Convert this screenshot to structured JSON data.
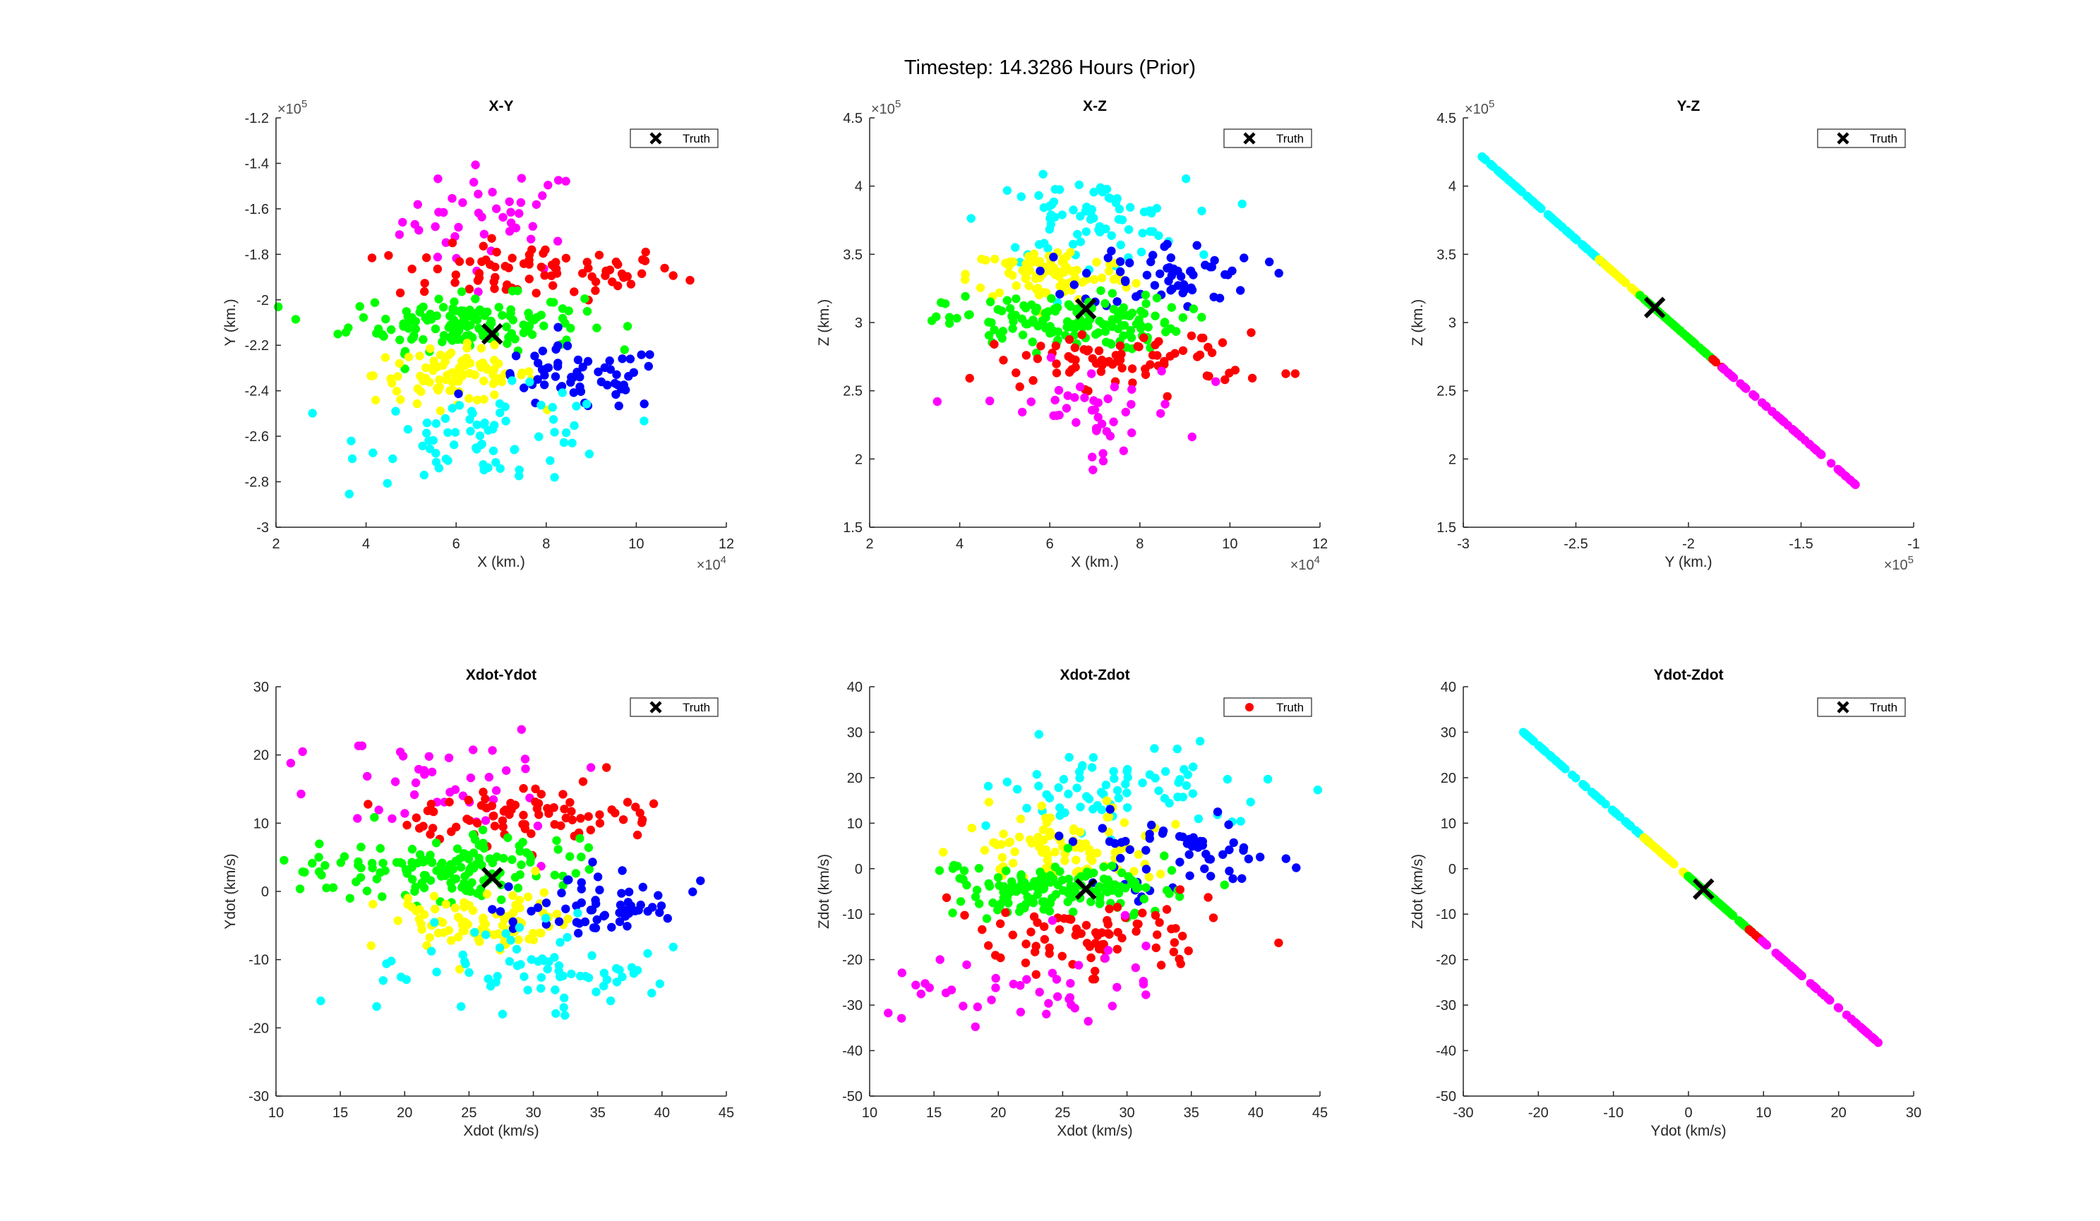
{
  "figure_title": "Timestep: 14.3286 Hours (Prior)",
  "colors": {
    "magenta": "#ff00ff",
    "red": "#ff0000",
    "green": "#00ff00",
    "yellow": "#ffff00",
    "blue": "#0000ff",
    "cyan": "#00ffff",
    "truth": "#000000"
  },
  "chart_data": [
    {
      "type": "scatter",
      "title": "X-Y",
      "xlabel": "X (km.)",
      "ylabel": "Y (km.)",
      "xlim": [
        2,
        12
      ],
      "ylim": [
        -3,
        -1.2
      ],
      "x_ticks": [
        "2",
        "4",
        "6",
        "8",
        "10",
        "12"
      ],
      "y_ticks": [
        "-3",
        "-2.8",
        "-2.6",
        "-2.4",
        "-2.2",
        "-2",
        "-1.8",
        "-1.6",
        "-1.4",
        "-1.2"
      ],
      "x_exponent": "×10^4",
      "y_exponent": "×10^5",
      "legend": {
        "label": "Truth",
        "marker": "x",
        "color": "#000000",
        "position": "top-right"
      },
      "truth": [
        6.8,
        -2.15
      ],
      "clusters": [
        {
          "name": "magenta",
          "cx": 6.8,
          "cy": -1.65,
          "sx": 1.0,
          "sy": 0.12,
          "n": 45
        },
        {
          "name": "red",
          "cx": 7.8,
          "cy": -1.88,
          "sx": 1.6,
          "sy": 0.06,
          "n": 80
        },
        {
          "name": "green",
          "cx": 6.2,
          "cy": -2.1,
          "sx": 1.3,
          "sy": 0.06,
          "n": 150
        },
        {
          "name": "yellow",
          "cx": 6.0,
          "cy": -2.33,
          "sx": 0.9,
          "sy": 0.06,
          "n": 90
        },
        {
          "name": "blue",
          "cx": 8.7,
          "cy": -2.35,
          "sx": 1.0,
          "sy": 0.07,
          "n": 60
        },
        {
          "name": "cyan",
          "cx": 6.8,
          "cy": -2.6,
          "sx": 1.4,
          "sy": 0.1,
          "n": 75
        }
      ]
    },
    {
      "type": "scatter",
      "title": "X-Z",
      "xlabel": "X (km.)",
      "ylabel": "Z (km.)",
      "xlim": [
        2,
        12
      ],
      "ylim": [
        1.5,
        4.5
      ],
      "x_ticks": [
        "2",
        "4",
        "6",
        "8",
        "10",
        "12"
      ],
      "y_ticks": [
        "1.5",
        "2",
        "2.5",
        "3",
        "3.5",
        "4",
        "4.5"
      ],
      "x_exponent": "×10^4",
      "y_exponent": "×10^5",
      "legend": {
        "label": "Truth",
        "marker": "x",
        "color": "#000000",
        "position": "top-right"
      },
      "truth": [
        6.8,
        3.1
      ],
      "clusters": [
        {
          "name": "cyan",
          "cx": 6.8,
          "cy": 3.75,
          "sx": 1.1,
          "sy": 0.15,
          "n": 75
        },
        {
          "name": "yellow",
          "cx": 6.0,
          "cy": 3.35,
          "sx": 0.9,
          "sy": 0.1,
          "n": 90
        },
        {
          "name": "blue",
          "cx": 8.7,
          "cy": 3.35,
          "sx": 1.0,
          "sy": 0.12,
          "n": 60
        },
        {
          "name": "green",
          "cx": 6.3,
          "cy": 3.0,
          "sx": 1.3,
          "sy": 0.1,
          "n": 150
        },
        {
          "name": "red",
          "cx": 7.8,
          "cy": 2.72,
          "sx": 1.6,
          "sy": 0.1,
          "n": 80
        },
        {
          "name": "magenta",
          "cx": 6.8,
          "cy": 2.35,
          "sx": 1.1,
          "sy": 0.18,
          "n": 45
        }
      ]
    },
    {
      "type": "scatter",
      "title": "Y-Z",
      "xlabel": "Y (km.)",
      "ylabel": "Z (km.)",
      "xlim": [
        -3,
        -1
      ],
      "ylim": [
        1.5,
        4.5
      ],
      "x_ticks": [
        "-3",
        "-2.5",
        "-2",
        "-1.5",
        "-1"
      ],
      "y_ticks": [
        "1.5",
        "2",
        "2.5",
        "3",
        "3.5",
        "4",
        "4.5"
      ],
      "x_exponent": "×10^5",
      "y_exponent": "×10^5",
      "legend": {
        "label": "Truth",
        "marker": "x",
        "color": "#000000",
        "position": "top-right"
      },
      "truth": [
        -2.15,
        3.11
      ],
      "line": {
        "x1": -2.92,
        "y1": 4.22,
        "x2": -1.25,
        "y2": 1.8
      },
      "segments": [
        {
          "name": "cyan",
          "t0": 0.0,
          "t1": 0.33,
          "n": 70
        },
        {
          "name": "yellow",
          "t0": 0.31,
          "t1": 0.44,
          "n": 40
        },
        {
          "name": "green",
          "t0": 0.42,
          "t1": 0.62,
          "n": 80
        },
        {
          "name": "red",
          "t0": 0.61,
          "t1": 0.65,
          "n": 10
        },
        {
          "name": "magenta",
          "t0": 0.64,
          "t1": 1.0,
          "n": 55
        }
      ]
    },
    {
      "type": "scatter",
      "title": "Xdot-Ydot",
      "xlabel": "Xdot (km/s)",
      "ylabel": "Ydot (km/s)",
      "xlim": [
        10,
        45
      ],
      "ylim": [
        -30,
        30
      ],
      "x_ticks": [
        "10",
        "15",
        "20",
        "25",
        "30",
        "35",
        "40",
        "45"
      ],
      "y_ticks": [
        "-30",
        "-20",
        "-10",
        "0",
        "10",
        "20",
        "30"
      ],
      "legend": {
        "label": "Truth",
        "marker": "x",
        "color": "#000000",
        "position": "top-right"
      },
      "truth": [
        26.8,
        2.0
      ],
      "clusters": [
        {
          "name": "magenta",
          "cx": 22.0,
          "cy": 17.0,
          "sx": 5.0,
          "sy": 4.0,
          "n": 45
        },
        {
          "name": "red",
          "cx": 29.0,
          "cy": 11.0,
          "sx": 5.5,
          "sy": 2.2,
          "n": 80
        },
        {
          "name": "green",
          "cx": 24.0,
          "cy": 3.5,
          "sx": 5.0,
          "sy": 2.2,
          "n": 150
        },
        {
          "name": "yellow",
          "cx": 25.5,
          "cy": -4.5,
          "sx": 3.5,
          "sy": 2.2,
          "n": 90
        },
        {
          "name": "blue",
          "cx": 34.5,
          "cy": -2.5,
          "sx": 3.5,
          "sy": 2.5,
          "n": 60
        },
        {
          "name": "cyan",
          "cx": 30.0,
          "cy": -12.0,
          "sx": 5.5,
          "sy": 3.5,
          "n": 75
        }
      ]
    },
    {
      "type": "scatter",
      "title": "Xdot-Zdot",
      "xlabel": "Xdot (km/s)",
      "ylabel": "Zdot (km/s)",
      "xlim": [
        10,
        45
      ],
      "ylim": [
        -50,
        40
      ],
      "x_ticks": [
        "10",
        "15",
        "20",
        "25",
        "30",
        "35",
        "40",
        "45"
      ],
      "y_ticks": [
        "-50",
        "-40",
        "-30",
        "-20",
        "-10",
        "0",
        "10",
        "20",
        "30",
        "40"
      ],
      "legend": {
        "label": "Truth",
        "marker": "dot",
        "color": "#ff0000",
        "position": "top-right"
      },
      "truth": [
        26.8,
        -4.5
      ],
      "clusters": [
        {
          "name": "cyan",
          "cx": 30.0,
          "cy": 17.0,
          "sx": 5.5,
          "sy": 5.0,
          "n": 75
        },
        {
          "name": "yellow",
          "cx": 25.0,
          "cy": 5.0,
          "sx": 3.5,
          "sy": 3.5,
          "n": 90
        },
        {
          "name": "blue",
          "cx": 34.0,
          "cy": 3.0,
          "sx": 3.5,
          "sy": 4.0,
          "n": 60
        },
        {
          "name": "green",
          "cx": 25.0,
          "cy": -4.5,
          "sx": 5.0,
          "sy": 3.5,
          "n": 150
        },
        {
          "name": "red",
          "cx": 28.0,
          "cy": -15.0,
          "sx": 6.0,
          "sy": 3.5,
          "n": 80
        },
        {
          "name": "magenta",
          "cx": 22.0,
          "cy": -26.0,
          "sx": 5.0,
          "sy": 6.0,
          "n": 45
        }
      ]
    },
    {
      "type": "scatter",
      "title": "Ydot-Zdot",
      "xlabel": "Ydot (km/s)",
      "ylabel": "Zdot (km/s)",
      "xlim": [
        -30,
        30
      ],
      "ylim": [
        -50,
        40
      ],
      "x_ticks": [
        "-30",
        "-20",
        "-10",
        "0",
        "10",
        "20",
        "30"
      ],
      "y_ticks": [
        "-50",
        "-40",
        "-30",
        "-20",
        "-10",
        "0",
        "10",
        "20",
        "30",
        "40"
      ],
      "legend": {
        "label": "Truth",
        "marker": "x",
        "color": "#000000",
        "position": "top-right"
      },
      "truth": [
        2.0,
        -4.5
      ],
      "line": {
        "x1": -22.0,
        "y1": 30.0,
        "x2": 26.5,
        "y2": -40.0
      },
      "segments": [
        {
          "name": "cyan",
          "t0": 0.0,
          "t1": 0.35,
          "n": 70
        },
        {
          "name": "yellow",
          "t0": 0.33,
          "t1": 0.47,
          "n": 40
        },
        {
          "name": "green",
          "t0": 0.45,
          "t1": 0.63,
          "n": 80
        },
        {
          "name": "red",
          "t0": 0.62,
          "t1": 0.66,
          "n": 10
        },
        {
          "name": "magenta",
          "t0": 0.65,
          "t1": 1.0,
          "n": 55
        }
      ]
    }
  ]
}
